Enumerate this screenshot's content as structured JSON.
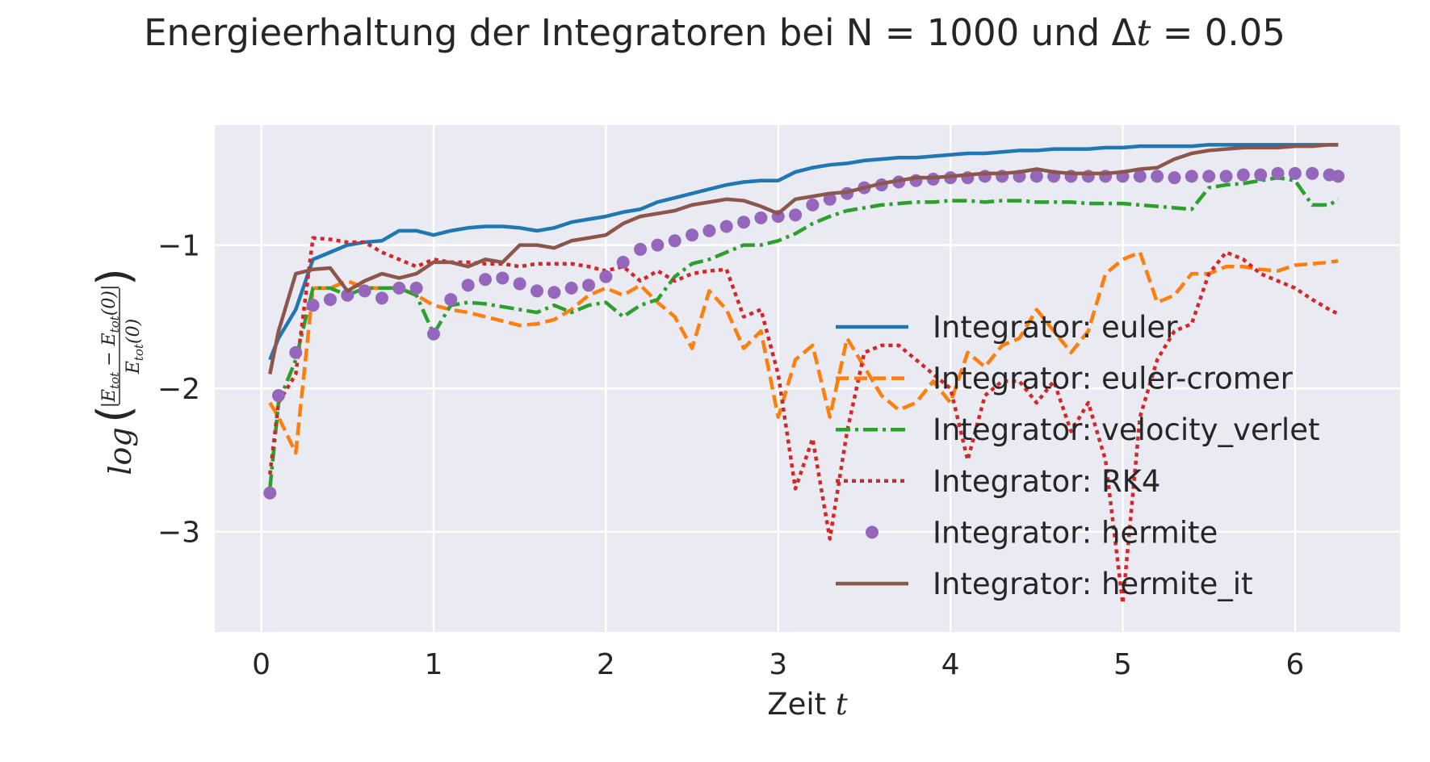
{
  "chart_data": {
    "type": "line",
    "title": [
      "Energieerhaltung der Integratoren bei N = 1000 und Δ",
      "t",
      " = 0.05"
    ],
    "xlabel": [
      "Zeit ",
      "t"
    ],
    "ylabel": {
      "func": "log",
      "numerator": [
        "|E",
        "tot",
        " − E",
        "tot",
        "(0)|"
      ],
      "denominator": [
        "E",
        "tot",
        "(0)"
      ]
    },
    "x": [
      0.05,
      0.1,
      0.2,
      0.3,
      0.4,
      0.5,
      0.6,
      0.7,
      0.8,
      0.9,
      1.0,
      1.1,
      1.2,
      1.3,
      1.4,
      1.5,
      1.6,
      1.7,
      1.8,
      1.9,
      2.0,
      2.1,
      2.2,
      2.3,
      2.4,
      2.5,
      2.6,
      2.7,
      2.8,
      2.9,
      3.0,
      3.1,
      3.2,
      3.3,
      3.4,
      3.5,
      3.6,
      3.7,
      3.8,
      3.9,
      4.0,
      4.1,
      4.2,
      4.3,
      4.4,
      4.5,
      4.6,
      4.7,
      4.8,
      4.9,
      5.0,
      5.1,
      5.2,
      5.3,
      5.4,
      5.5,
      5.6,
      5.7,
      5.8,
      5.9,
      6.0,
      6.1,
      6.2,
      6.25
    ],
    "series": [
      {
        "name": "Integrator: euler",
        "color": "#1f77b4",
        "style": "solid",
        "values": [
          -1.8,
          -1.65,
          -1.45,
          -1.1,
          -1.05,
          -1.0,
          -0.98,
          -0.97,
          -0.9,
          -0.9,
          -0.93,
          -0.9,
          -0.88,
          -0.87,
          -0.87,
          -0.88,
          -0.9,
          -0.88,
          -0.84,
          -0.82,
          -0.8,
          -0.77,
          -0.75,
          -0.7,
          -0.67,
          -0.64,
          -0.61,
          -0.58,
          -0.56,
          -0.55,
          -0.55,
          -0.49,
          -0.46,
          -0.44,
          -0.43,
          -0.41,
          -0.4,
          -0.39,
          -0.39,
          -0.38,
          -0.37,
          -0.36,
          -0.36,
          -0.35,
          -0.34,
          -0.34,
          -0.33,
          -0.33,
          -0.33,
          -0.32,
          -0.32,
          -0.31,
          -0.31,
          -0.31,
          -0.31,
          -0.3,
          -0.3,
          -0.3,
          -0.3,
          -0.3,
          -0.3,
          -0.3,
          -0.3,
          -0.3
        ]
      },
      {
        "name": "Integrator: euler-cromer",
        "color": "#ff7f0e",
        "style": "dashed",
        "values": [
          -2.1,
          -2.2,
          -2.45,
          -1.3,
          -1.3,
          -1.25,
          -1.3,
          -1.3,
          -1.3,
          -1.35,
          -1.42,
          -1.45,
          -1.47,
          -1.5,
          -1.53,
          -1.56,
          -1.55,
          -1.52,
          -1.45,
          -1.35,
          -1.3,
          -1.35,
          -1.28,
          -1.4,
          -1.5,
          -1.72,
          -1.32,
          -1.45,
          -1.72,
          -1.6,
          -2.2,
          -1.8,
          -1.7,
          -2.2,
          -1.65,
          -1.85,
          -2.05,
          -2.15,
          -2.1,
          -1.95,
          -2.1,
          -1.75,
          -1.85,
          -1.7,
          -1.65,
          -1.45,
          -1.6,
          -1.75,
          -1.6,
          -1.2,
          -1.1,
          -1.05,
          -1.4,
          -1.35,
          -1.2,
          -1.2,
          -1.15,
          -1.15,
          -1.17,
          -1.18,
          -1.14,
          -1.13,
          -1.12,
          -1.11
        ]
      },
      {
        "name": "Integrator: velocity_verlet",
        "color": "#2ca02c",
        "style": "dashdot",
        "values": [
          -2.7,
          -2.1,
          -1.8,
          -1.3,
          -1.3,
          -1.35,
          -1.3,
          -1.3,
          -1.3,
          -1.35,
          -1.62,
          -1.42,
          -1.4,
          -1.41,
          -1.43,
          -1.45,
          -1.47,
          -1.42,
          -1.47,
          -1.42,
          -1.4,
          -1.5,
          -1.42,
          -1.38,
          -1.22,
          -1.13,
          -1.1,
          -1.05,
          -1.0,
          -1.0,
          -0.97,
          -0.92,
          -0.85,
          -0.8,
          -0.76,
          -0.74,
          -0.72,
          -0.71,
          -0.7,
          -0.7,
          -0.69,
          -0.69,
          -0.7,
          -0.69,
          -0.69,
          -0.7,
          -0.7,
          -0.7,
          -0.71,
          -0.71,
          -0.71,
          -0.72,
          -0.73,
          -0.74,
          -0.75,
          -0.6,
          -0.58,
          -0.57,
          -0.55,
          -0.53,
          -0.55,
          -0.72,
          -0.72,
          -0.68
        ]
      },
      {
        "name": "Integrator: RK4",
        "color": "#d62728",
        "style": "dotted",
        "values": [
          -2.6,
          -2.1,
          -1.9,
          -0.95,
          -0.96,
          -0.98,
          -0.98,
          -1.05,
          -1.1,
          -1.15,
          -1.1,
          -1.12,
          -1.12,
          -1.13,
          -1.13,
          -1.15,
          -1.13,
          -1.13,
          -1.13,
          -1.15,
          -1.18,
          -1.15,
          -1.25,
          -1.18,
          -1.25,
          -1.2,
          -1.18,
          -1.17,
          -1.5,
          -1.45,
          -1.9,
          -2.7,
          -2.35,
          -3.05,
          -2.3,
          -1.75,
          -1.7,
          -1.7,
          -1.8,
          -1.9,
          -2.0,
          -2.5,
          -2.05,
          -1.95,
          -1.95,
          -2.1,
          -1.95,
          -2.3,
          -2.1,
          -2.5,
          -3.5,
          -2.2,
          -1.8,
          -1.6,
          -1.55,
          -1.2,
          -1.05,
          -1.1,
          -1.2,
          -1.25,
          -1.3,
          -1.38,
          -1.45,
          -1.48
        ]
      },
      {
        "name": "Integrator: hermite",
        "color": "#9467bd",
        "style": "markers",
        "values": [
          -2.73,
          -2.05,
          -1.75,
          -1.42,
          -1.38,
          -1.35,
          -1.32,
          -1.37,
          -1.3,
          -1.3,
          -1.62,
          -1.38,
          -1.28,
          -1.24,
          -1.23,
          -1.27,
          -1.32,
          -1.33,
          -1.3,
          -1.28,
          -1.22,
          -1.12,
          -1.03,
          -1.0,
          -0.97,
          -0.93,
          -0.9,
          -0.87,
          -0.84,
          -0.81,
          -0.8,
          -0.79,
          -0.72,
          -0.68,
          -0.64,
          -0.6,
          -0.58,
          -0.56,
          -0.55,
          -0.54,
          -0.53,
          -0.53,
          -0.52,
          -0.52,
          -0.52,
          -0.52,
          -0.52,
          -0.52,
          -0.52,
          -0.52,
          -0.52,
          -0.52,
          -0.52,
          -0.53,
          -0.52,
          -0.52,
          -0.52,
          -0.51,
          -0.51,
          -0.5,
          -0.5,
          -0.5,
          -0.51,
          -0.52
        ]
      },
      {
        "name": "Integrator: hermite_it",
        "color": "#8c564b",
        "style": "solid",
        "values": [
          -1.9,
          -1.6,
          -1.2,
          -1.17,
          -1.16,
          -1.32,
          -1.25,
          -1.2,
          -1.23,
          -1.2,
          -1.12,
          -1.12,
          -1.15,
          -1.1,
          -1.12,
          -1.0,
          -1.0,
          -1.02,
          -0.97,
          -0.95,
          -0.93,
          -0.85,
          -0.8,
          -0.78,
          -0.76,
          -0.72,
          -0.7,
          -0.68,
          -0.69,
          -0.73,
          -0.78,
          -0.68,
          -0.66,
          -0.64,
          -0.63,
          -0.6,
          -0.57,
          -0.55,
          -0.53,
          -0.53,
          -0.52,
          -0.51,
          -0.5,
          -0.5,
          -0.49,
          -0.47,
          -0.49,
          -0.5,
          -0.5,
          -0.5,
          -0.49,
          -0.47,
          -0.46,
          -0.4,
          -0.36,
          -0.34,
          -0.33,
          -0.32,
          -0.32,
          -0.32,
          -0.31,
          -0.31,
          -0.3,
          -0.3
        ]
      }
    ],
    "xlim": [
      -0.27,
      6.61
    ],
    "ylim": [
      -3.7,
      -0.163
    ],
    "xticks": [
      0,
      1,
      2,
      3,
      4,
      5,
      6
    ],
    "yticks": [
      {
        "value": -1,
        "label": "−1"
      },
      {
        "value": -2,
        "label": "−2"
      },
      {
        "value": -3,
        "label": "−3"
      }
    ],
    "grid": true,
    "legend": "lower right"
  }
}
